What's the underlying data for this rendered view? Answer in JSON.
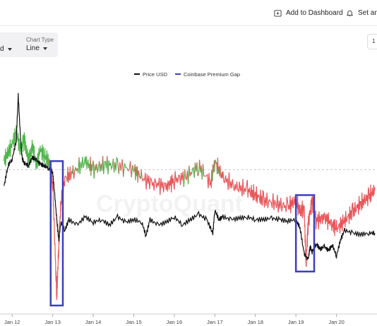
{
  "toolbar": {
    "add_dashboard": "Add to Dashboard",
    "set_alert": "Set an a"
  },
  "controls": {
    "first_value": "d",
    "chart_type_label": "Chart Type",
    "chart_type_value": "Line"
  },
  "right_button": "1",
  "watermark": "CryptoQuant",
  "chart_data": {
    "type": "line",
    "categories": [
      "Jan 12",
      "Jan 13",
      "Jan 14",
      "Jan 15",
      "Jan 16",
      "Jan 17",
      "Jan 18",
      "Jan 19",
      "Jan 20"
    ],
    "series": [
      {
        "name": "Price USD",
        "color": "#111111",
        "x": [
          11.8,
          11.9,
          12.0,
          12.1,
          12.15,
          12.2,
          12.25,
          12.3,
          12.4,
          12.5,
          12.6,
          12.7,
          12.8,
          12.9,
          13.0,
          13.05,
          13.1,
          13.15,
          13.2,
          13.3,
          13.4,
          13.6,
          13.8,
          14.0,
          14.2,
          14.4,
          14.6,
          14.8,
          15.0,
          15.2,
          15.3,
          15.4,
          15.6,
          15.8,
          16.0,
          16.2,
          16.4,
          16.6,
          16.8,
          16.95,
          17.0,
          17.1,
          17.2,
          17.4,
          17.6,
          17.8,
          18.0,
          18.2,
          18.4,
          18.6,
          18.8,
          19.0,
          19.1,
          19.2,
          19.3,
          19.35,
          19.4,
          19.5,
          19.6,
          19.7,
          19.8,
          19.9,
          20.0,
          20.1,
          20.2,
          20.4,
          20.6,
          20.8,
          20.95
        ],
        "values": [
          195,
          210,
          215,
          228,
          262,
          233,
          215,
          212,
          210,
          216,
          214,
          211,
          210,
          208,
          205,
          188,
          170,
          155,
          168,
          162,
          170,
          166,
          172,
          168,
          170,
          166,
          172,
          168,
          170,
          168,
          158,
          170,
          166,
          168,
          172,
          166,
          170,
          174,
          170,
          160,
          177,
          170,
          172,
          170,
          171,
          172,
          170,
          170,
          171,
          170,
          169,
          170,
          164,
          145,
          140,
          150,
          146,
          152,
          148,
          150,
          147,
          151,
          143,
          155,
          162,
          160,
          159,
          160,
          160
        ]
      },
      {
        "name": "Coinbase Premium Gap",
        "color_positive": "#4fb54b",
        "color_negative": "#e8575a",
        "x": [
          11.8,
          11.9,
          12.0,
          12.1,
          12.2,
          12.3,
          12.4,
          12.5,
          12.6,
          12.7,
          12.8,
          12.9,
          13.0,
          13.1,
          13.15,
          13.2,
          13.3,
          13.5,
          13.8,
          14.0,
          14.3,
          14.6,
          15.0,
          15.2,
          15.5,
          15.8,
          16.0,
          16.3,
          16.6,
          16.9,
          17.0,
          17.2,
          17.5,
          17.8,
          18.0,
          18.2,
          18.5,
          18.8,
          19.0,
          19.1,
          19.2,
          19.25,
          19.3,
          19.4,
          19.5,
          19.7,
          19.9,
          20.0,
          20.2,
          20.4,
          20.6,
          20.8,
          20.95
        ],
        "values": [
          5,
          10,
          15,
          22,
          12,
          18,
          5,
          14,
          3,
          12,
          8,
          5,
          -8,
          -75,
          -45,
          -20,
          -5,
          -2,
          5,
          0,
          3,
          2,
          0,
          -5,
          -8,
          -10,
          -6,
          -4,
          2,
          -8,
          5,
          -5,
          -10,
          -12,
          -15,
          -18,
          -20,
          -22,
          -18,
          -25,
          -22,
          -55,
          -32,
          -18,
          -30,
          -28,
          -32,
          -35,
          -30,
          -25,
          -20,
          -16,
          -12
        ]
      }
    ],
    "xlim": [
      11.7,
      21.0
    ],
    "price_ylim": [
      100,
      270
    ],
    "gap_ylim": [
      -85,
      50
    ],
    "zero_line": 0,
    "highlight_boxes": [
      {
        "from": 12.95,
        "to": 13.25,
        "gap_low": -80,
        "gap_high": 5
      },
      {
        "from": 19.0,
        "to": 19.45,
        "gap_low": -60,
        "gap_high": -15
      }
    ],
    "legend_position": "top-center",
    "grid": false
  }
}
